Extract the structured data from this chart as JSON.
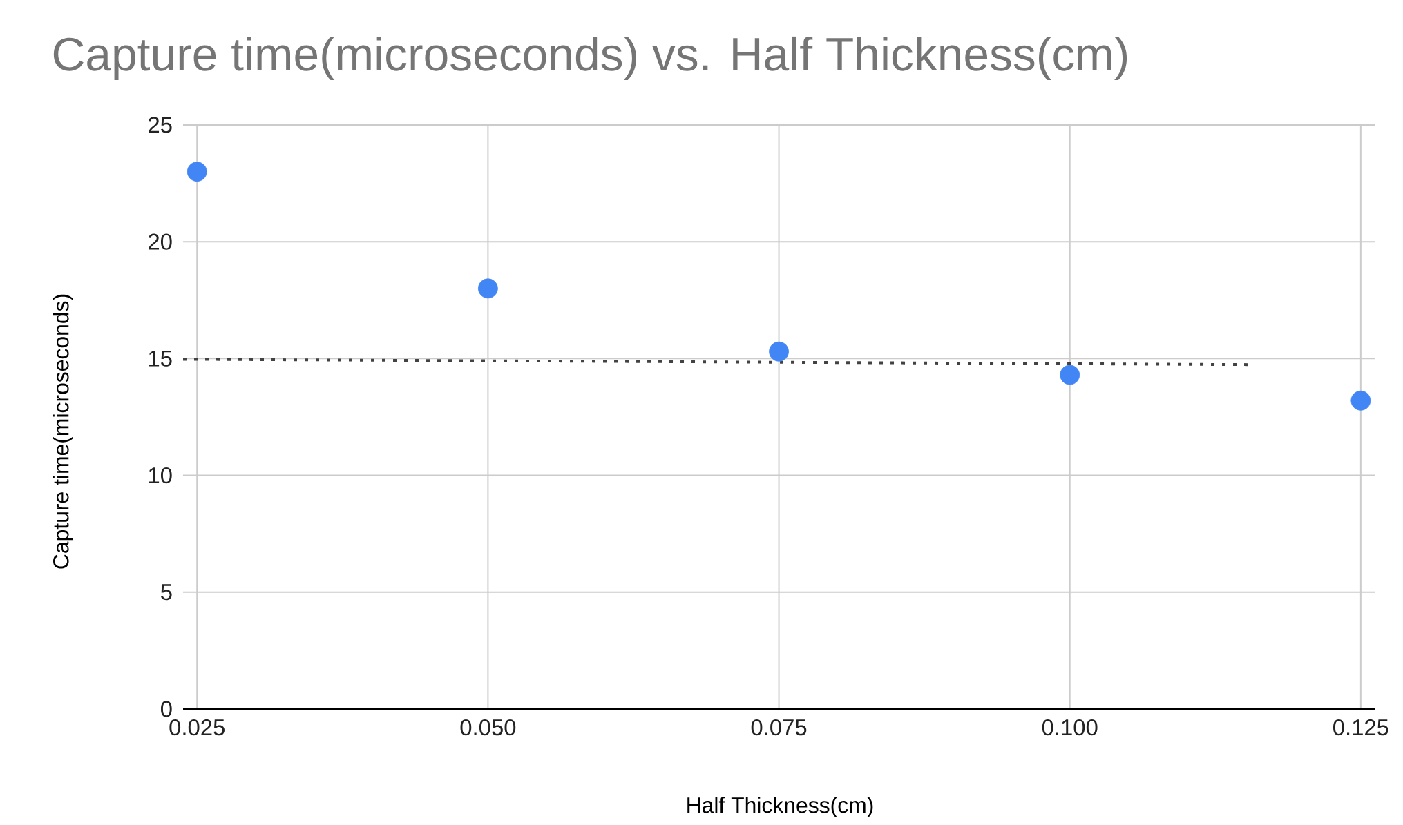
{
  "chart_data": {
    "type": "scatter",
    "title": "Capture time(microseconds) vs. Half Thickness(cm)",
    "xlabel": "Half Thickness(cm)",
    "ylabel": "Capture time(microseconds)",
    "series": [
      {
        "color": "#4285f4",
        "marker": "circle",
        "x": [
          0.025,
          0.05,
          0.075,
          0.1,
          0.125
        ],
        "values": [
          23.0,
          18.0,
          15.3,
          14.3,
          13.2
        ]
      },
      {
        "type": "line",
        "color": "#424242",
        "line_style": "dotted",
        "marker": "none",
        "x": [
          0.0238,
          0.1155
        ],
        "values": [
          14.97,
          14.74
        ]
      }
    ],
    "xlim": [
      0.0238,
      0.1262
    ],
    "ylim": [
      0,
      25
    ],
    "xticks": [
      {
        "value": 0.025,
        "label": "0.025"
      },
      {
        "value": 0.05,
        "label": "0.050"
      },
      {
        "value": 0.075,
        "label": "0.075"
      },
      {
        "value": 0.1,
        "label": "0.100"
      },
      {
        "value": 0.125,
        "label": "0.125"
      }
    ],
    "yticks": [
      0,
      5,
      10,
      15,
      20,
      25
    ],
    "grid": true
  }
}
